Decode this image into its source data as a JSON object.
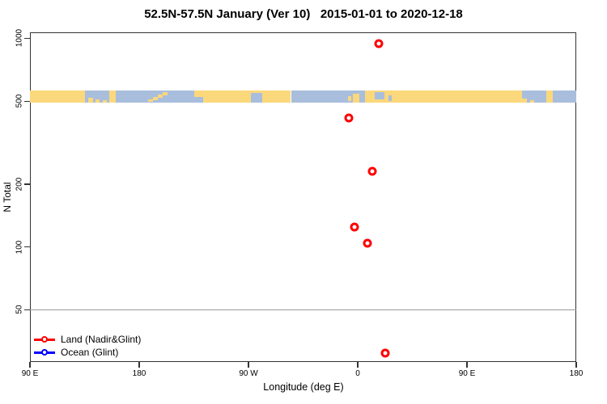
{
  "chart_data": {
    "type": "scatter",
    "title": "52.5N-57.5N January (Ver 10)   2015-01-01 to 2020-12-18",
    "x_axis": {
      "label": "Longitude (deg E)",
      "span_deg": 450,
      "ticks": [
        {
          "deg": 0,
          "label": "90 E"
        },
        {
          "deg": 90,
          "label": "180"
        },
        {
          "deg": 180,
          "label": "90 W"
        },
        {
          "deg": 270,
          "label": "0"
        },
        {
          "deg": 360,
          "label": "90 E"
        },
        {
          "deg": 450,
          "label": "180"
        }
      ]
    },
    "y_axis": {
      "label": "N Total",
      "scale": "log",
      "ticks": [
        1000,
        500,
        200,
        100,
        50
      ],
      "range": [
        28.1,
        1069
      ]
    },
    "reference_lines": [
      {
        "value": 50,
        "color": "#999999"
      }
    ],
    "series": [
      {
        "name": "Land (Nadir&Glint)",
        "color": "#ff0000",
        "points": [
          {
            "deg": 287.3,
            "lon": 17.3,
            "n": 940
          },
          {
            "deg": 262.7,
            "lon": -7.3,
            "n": 415
          },
          {
            "deg": 282.0,
            "lon": 12.0,
            "n": 230
          },
          {
            "deg": 267.3,
            "lon": -2.7,
            "n": 125
          },
          {
            "deg": 278.0,
            "lon": 8.0,
            "n": 104
          },
          {
            "deg": 292.7,
            "lon": 22.7,
            "n": 31
          }
        ]
      },
      {
        "name": "Ocean (Glint)",
        "color": "#0000ff",
        "points": []
      }
    ],
    "map_strip": {
      "description": "land/ocean mask strip for latitude band 52.5N-57.5N plotted at N=500",
      "land_color": "#fbd87b",
      "ocean_color": "#a9bedd",
      "segments": [
        {
          "from": 0,
          "to": 45.3,
          "type": "land"
        },
        {
          "from": 45.3,
          "to": 65.3,
          "type": "ocean"
        },
        {
          "from": 65.3,
          "to": 70.7,
          "type": "land"
        },
        {
          "from": 70.7,
          "to": 135.3,
          "type": "ocean"
        },
        {
          "from": 135.3,
          "to": 215,
          "type": "land"
        },
        {
          "from": 215,
          "to": 276,
          "type": "ocean"
        },
        {
          "from": 276,
          "to": 405,
          "type": "land"
        },
        {
          "from": 405,
          "to": 425.3,
          "type": "ocean"
        },
        {
          "from": 425.3,
          "to": 430.7,
          "type": "land"
        },
        {
          "from": 430.7,
          "to": 450,
          "type": "ocean"
        }
      ],
      "patches": [
        {
          "from": 48,
          "to": 52,
          "type": "land",
          "v": [
            0.6,
            1
          ]
        },
        {
          "from": 54,
          "to": 57,
          "type": "land",
          "v": [
            0.75,
            1
          ]
        },
        {
          "from": 60,
          "to": 63,
          "type": "land",
          "v": [
            0.8,
            1
          ]
        },
        {
          "from": 97,
          "to": 101,
          "type": "land",
          "v": [
            0.72,
            0.95
          ]
        },
        {
          "from": 101,
          "to": 105,
          "type": "land",
          "v": [
            0.52,
            0.78
          ]
        },
        {
          "from": 105,
          "to": 109,
          "type": "land",
          "v": [
            0.34,
            0.6
          ]
        },
        {
          "from": 109,
          "to": 113,
          "type": "land",
          "v": [
            0.16,
            0.42
          ]
        },
        {
          "from": 135.3,
          "to": 143,
          "type": "ocean",
          "v": [
            0.55,
            1
          ]
        },
        {
          "from": 182,
          "to": 191.5,
          "type": "ocean",
          "v": [
            0.2,
            1
          ]
        },
        {
          "from": 262,
          "to": 264.5,
          "type": "land",
          "v": [
            0.45,
            0.85
          ]
        },
        {
          "from": 266,
          "to": 271,
          "type": "land",
          "v": [
            0.25,
            1
          ]
        },
        {
          "from": 284,
          "to": 292,
          "type": "ocean",
          "v": [
            0.12,
            0.72
          ]
        },
        {
          "from": 295,
          "to": 298,
          "type": "ocean",
          "v": [
            0.4,
            0.85
          ]
        },
        {
          "from": 405,
          "to": 409,
          "type": "land",
          "v": [
            0.65,
            1
          ]
        },
        {
          "from": 412,
          "to": 415,
          "type": "land",
          "v": [
            0.8,
            1
          ]
        }
      ]
    },
    "legend_position": "bottom-left"
  }
}
